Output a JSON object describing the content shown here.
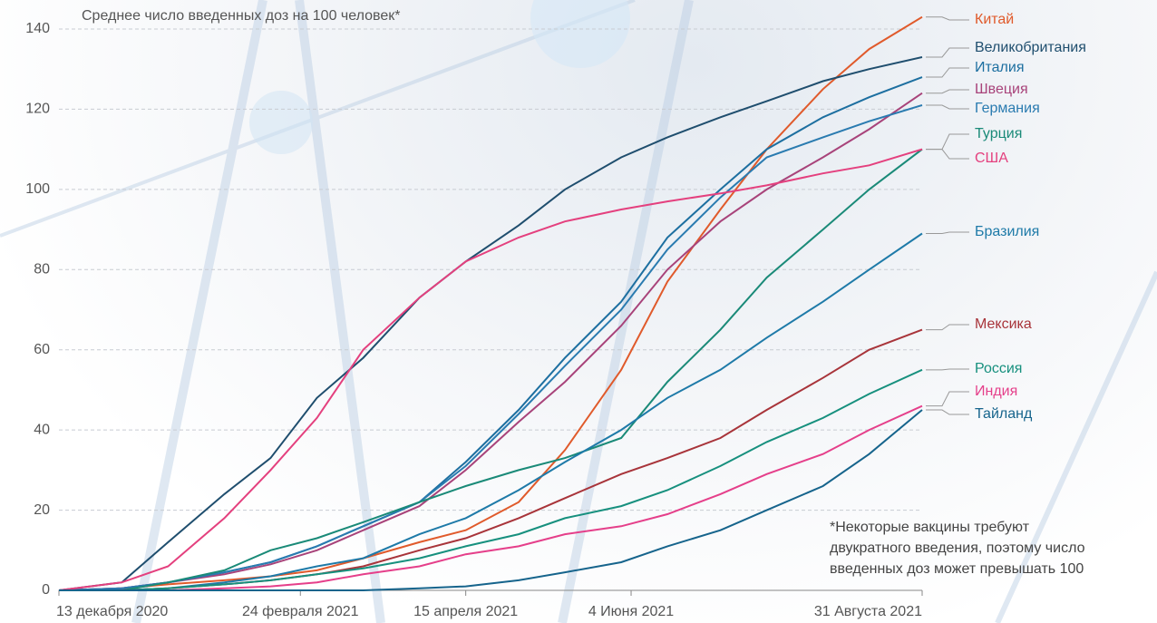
{
  "chart_data": {
    "type": "line",
    "title": "Среднее число введенных доз на 100 человек*",
    "footnote": [
      "*Некоторые вакцины требуют",
      "двукратного введения, поэтому число",
      "введенных доз может превышать 100"
    ],
    "x": [
      "2020-12-13",
      "2021-01-01",
      "2021-01-15",
      "2021-02-01",
      "2021-02-15",
      "2021-03-01",
      "2021-03-15",
      "2021-04-01",
      "2021-04-15",
      "2021-05-01",
      "2021-05-15",
      "2021-06-01",
      "2021-06-15",
      "2021-07-01",
      "2021-07-15",
      "2021-08-01",
      "2021-08-15",
      "2021-08-31"
    ],
    "xlim": [
      "2020-12-13",
      "2021-08-31"
    ],
    "xticks": [
      {
        "value": "2020-12-13",
        "label": "13 декабря 2020"
      },
      {
        "value": "2021-02-24",
        "label": "24 февраля 2021"
      },
      {
        "value": "2021-04-15",
        "label": "15 апреля 2021"
      },
      {
        "value": "2021-06-04",
        "label": "4 Июня 2021"
      },
      {
        "value": "2021-08-31",
        "label": "31 Августа 2021"
      }
    ],
    "ylim": [
      0,
      140
    ],
    "yticks": [
      0,
      20,
      40,
      60,
      80,
      100,
      120,
      140
    ],
    "grid": true,
    "series": [
      {
        "name": "Китай",
        "color": "#e05a2b",
        "values": [
          0,
          0.5,
          1.5,
          2.5,
          3.5,
          5,
          8,
          12,
          15,
          22,
          35,
          55,
          77,
          95,
          110,
          125,
          135,
          143
        ]
      },
      {
        "name": "Великобритания",
        "color": "#1f4e6e",
        "values": [
          0,
          2,
          12,
          24,
          33,
          48,
          58,
          73,
          82,
          91,
          100,
          108,
          113,
          118,
          122,
          127,
          130,
          133
        ]
      },
      {
        "name": "Италия",
        "color": "#1d6fa0",
        "values": [
          0,
          0.5,
          2,
          4.5,
          7,
          11,
          16,
          22,
          32,
          45,
          58,
          72,
          88,
          100,
          110,
          118,
          123,
          128
        ]
      },
      {
        "name": "Швеция",
        "color": "#a8437a",
        "values": [
          0,
          0.5,
          2,
          4,
          6.5,
          10,
          15,
          21,
          30,
          42,
          52,
          66,
          80,
          92,
          100,
          108,
          115,
          124
        ]
      },
      {
        "name": "Германия",
        "color": "#2a7bb0",
        "values": [
          0,
          0.5,
          2,
          4.5,
          7,
          11,
          16,
          22,
          31,
          44,
          56,
          70,
          85,
          98,
          108,
          113,
          117,
          121
        ]
      },
      {
        "name": "Турция",
        "color": "#1a8a78",
        "values": [
          0,
          0,
          2,
          5,
          10,
          13,
          17,
          22,
          26,
          30,
          33,
          38,
          52,
          65,
          78,
          90,
          100,
          110
        ]
      },
      {
        "name": "США",
        "color": "#e4407e",
        "values": [
          0,
          2,
          6,
          18,
          30,
          43,
          60,
          73,
          82,
          88,
          92,
          95,
          97,
          99,
          101,
          104,
          106,
          110
        ]
      },
      {
        "name": "Бразилия",
        "color": "#1e7aa8",
        "values": [
          0,
          0,
          0.5,
          2,
          3.5,
          6,
          8,
          14,
          18,
          25,
          32,
          40,
          48,
          55,
          63,
          72,
          80,
          89
        ]
      },
      {
        "name": "Мексика",
        "color": "#a8343a",
        "values": [
          0,
          0,
          0.5,
          1.5,
          2.5,
          4,
          6,
          10,
          13,
          18,
          23,
          29,
          33,
          38,
          45,
          53,
          60,
          65
        ]
      },
      {
        "name": "Россия",
        "color": "#17907e",
        "values": [
          0,
          0,
          0.5,
          1.5,
          2.5,
          4,
          5.5,
          8,
          11,
          14,
          18,
          21,
          25,
          31,
          37,
          43,
          49,
          55
        ]
      },
      {
        "name": "Индия",
        "color": "#e53f8a",
        "values": [
          0,
          0,
          0,
          0.5,
          1,
          2,
          4,
          6,
          9,
          11,
          14,
          16,
          19,
          24,
          29,
          34,
          40,
          46
        ]
      },
      {
        "name": "Тайланд",
        "color": "#16648c",
        "values": [
          0,
          0,
          0,
          0,
          0,
          0,
          0,
          0.5,
          1,
          2.5,
          4.5,
          7,
          11,
          15,
          20,
          26,
          34,
          45
        ]
      }
    ]
  }
}
